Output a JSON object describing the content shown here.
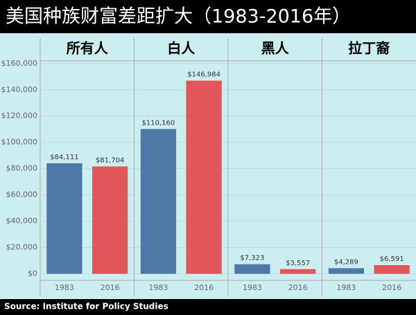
{
  "chart_data": {
    "type": "bar",
    "title": "美国种族财富差距扩大（1983-2016年）",
    "source": "Source: Institute for Policy Studies",
    "panels": [
      {
        "name": "所有人",
        "categories": [
          "1983",
          "2016"
        ],
        "values": [
          84111,
          81704
        ],
        "value_labels": [
          "$84,111",
          "$81,704"
        ]
      },
      {
        "name": "白人",
        "categories": [
          "1983",
          "2016"
        ],
        "values": [
          110160,
          146984
        ],
        "value_labels": [
          "$110,160",
          "$146,984"
        ]
      },
      {
        "name": "黑人",
        "categories": [
          "1983",
          "2016"
        ],
        "values": [
          7323,
          3557
        ],
        "value_labels": [
          "$7,323",
          "$3,557"
        ]
      },
      {
        "name": "拉丁裔",
        "categories": [
          "1983",
          "2016"
        ],
        "values": [
          4289,
          6591
        ],
        "value_labels": [
          "$4,289",
          "$6,591"
        ]
      }
    ],
    "colors": [
      "#4e79a7",
      "#e15759"
    ],
    "ylim": [
      -5000,
      162000
    ],
    "yticks": [
      {
        "value": 0,
        "label": "$0"
      },
      {
        "value": 20000,
        "label": "$20,000"
      },
      {
        "value": 40000,
        "label": "$40,000"
      },
      {
        "value": 60000,
        "label": "$60,000"
      },
      {
        "value": 80000,
        "label": "$80,000"
      },
      {
        "value": 100000,
        "label": "$100,000"
      },
      {
        "value": 120000,
        "label": "$120,000"
      },
      {
        "value": 140000,
        "label": "$140,000"
      },
      {
        "value": 160000,
        "label": "$160,000"
      }
    ],
    "grid": true
  }
}
